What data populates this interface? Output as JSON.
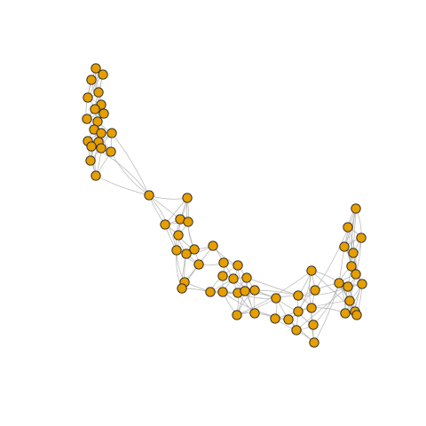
{
  "graph": {
    "node_color": "#E69F00",
    "edge_color": "#B3B3B3",
    "node_border_color": "#222222",
    "node_count": 85
  }
}
